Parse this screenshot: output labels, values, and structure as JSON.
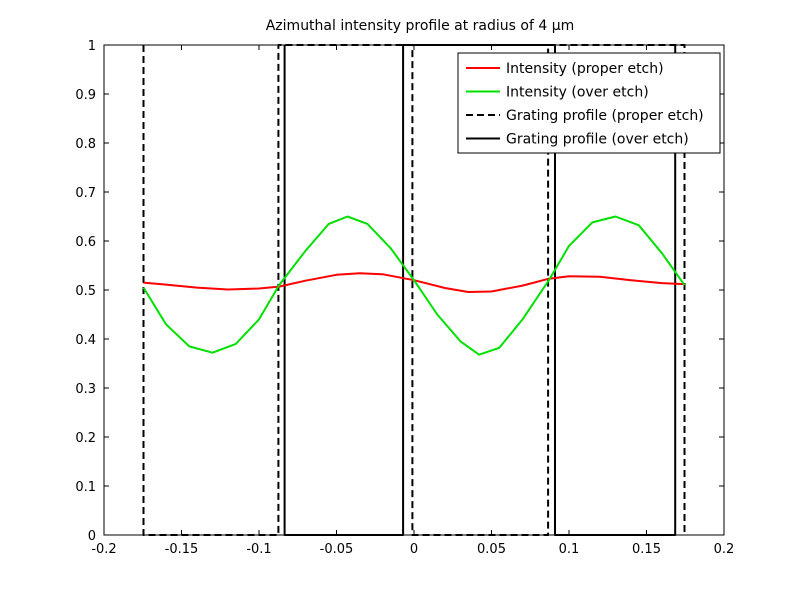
{
  "chart_data": {
    "type": "line",
    "title": "Azimuthal intensity profile at radius of 4 µm",
    "xlabel": "",
    "ylabel": "",
    "xlim": [
      -0.2,
      0.2
    ],
    "ylim": [
      0,
      1
    ],
    "xticks": [
      -0.2,
      -0.15,
      -0.1,
      -0.05,
      0,
      0.05,
      0.1,
      0.15,
      0.2
    ],
    "xtick_labels": [
      "-0.2",
      "-0.15",
      "-0.1",
      "-0.05",
      "0",
      "0.05",
      "0.1",
      "0.15",
      "0.2"
    ],
    "yticks": [
      0,
      0.1,
      0.2,
      0.3,
      0.4,
      0.5,
      0.6,
      0.7,
      0.8,
      0.9,
      1
    ],
    "ytick_labels": [
      "0",
      "0.1",
      "0.2",
      "0.3",
      "0.4",
      "0.5",
      "0.6",
      "0.7",
      "0.8",
      "0.9",
      "1"
    ],
    "grid": false,
    "legend_position": "top-right",
    "series": [
      {
        "name": "Intensity (proper etch)",
        "color": "#ff0000",
        "style": "solid",
        "x": [
          -0.1745,
          -0.16,
          -0.14,
          -0.12,
          -0.1,
          -0.087,
          -0.07,
          -0.05,
          -0.035,
          -0.02,
          0,
          0.02,
          0.035,
          0.05,
          0.07,
          0.087,
          0.1,
          0.12,
          0.14,
          0.16,
          0.1745
        ],
        "y": [
          0.515,
          0.511,
          0.505,
          0.501,
          0.503,
          0.507,
          0.519,
          0.531,
          0.534,
          0.532,
          0.52,
          0.504,
          0.496,
          0.497,
          0.509,
          0.523,
          0.528,
          0.527,
          0.52,
          0.514,
          0.512
        ]
      },
      {
        "name": "Intensity (over etch)",
        "color": "#00e000",
        "style": "solid",
        "x": [
          -0.1745,
          -0.16,
          -0.145,
          -0.13,
          -0.115,
          -0.1,
          -0.087,
          -0.07,
          -0.055,
          -0.043,
          -0.03,
          -0.015,
          0,
          0.015,
          0.03,
          0.042,
          0.055,
          0.07,
          0.087,
          0.1,
          0.115,
          0.13,
          0.145,
          0.16,
          0.1745
        ],
        "y": [
          0.505,
          0.43,
          0.385,
          0.372,
          0.39,
          0.44,
          0.51,
          0.58,
          0.635,
          0.65,
          0.635,
          0.585,
          0.52,
          0.45,
          0.395,
          0.368,
          0.382,
          0.44,
          0.52,
          0.59,
          0.638,
          0.65,
          0.632,
          0.575,
          0.51
        ]
      },
      {
        "name": "Grating profile (proper etch)",
        "color": "#000000",
        "style": "dashed",
        "x": [
          -0.1745,
          -0.1745,
          -0.0875,
          -0.0875,
          -0.001,
          -0.001,
          0.0865,
          0.0865,
          0.1745,
          0.1745
        ],
        "y": [
          1,
          0,
          0,
          1,
          1,
          0,
          0,
          1,
          1,
          0
        ]
      },
      {
        "name": "Grating profile (over etch)",
        "color": "#000000",
        "style": "solid",
        "x": [
          -0.0835,
          -0.0835,
          -0.007,
          -0.007,
          0.091,
          0.091,
          0.1685,
          0.1685
        ],
        "y": [
          1,
          0,
          0,
          1,
          1,
          0,
          0,
          1
        ]
      }
    ]
  }
}
